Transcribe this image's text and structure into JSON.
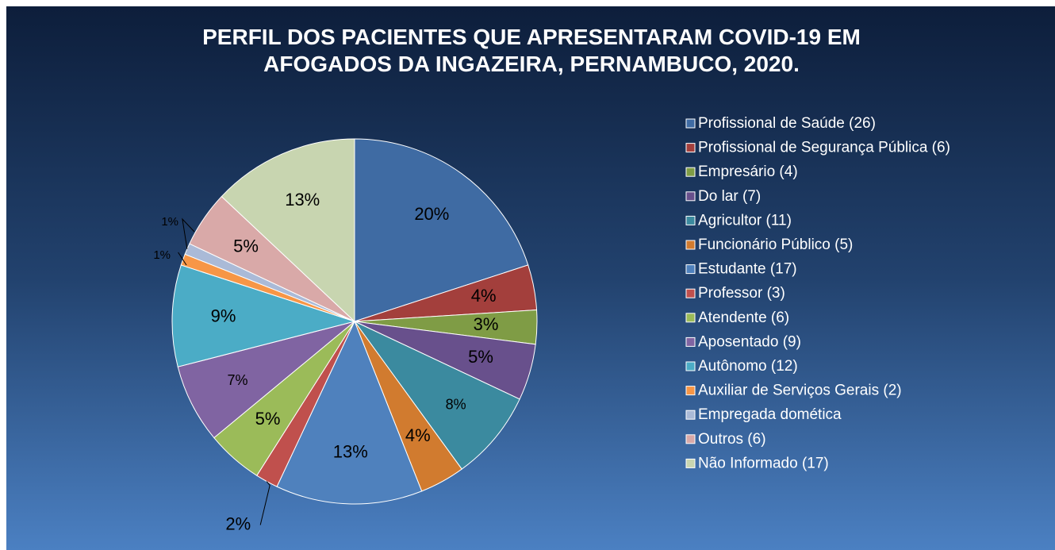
{
  "chart_data": {
    "type": "pie",
    "title": "PERFIL DOS PACIENTES QUE APRESENTARAM COVID-19 EM AFOGADOS DA INGAZEIRA, PERNAMBUCO, 2020.",
    "categories": [
      "Profissional de Saúde (26)",
      "Profissional de Segurança Pública (6)",
      "Empresário (4)",
      "Do lar (7)",
      "Agricultor (11)",
      "Funcionário Público (5)",
      "Estudante (17)",
      "Professor (3)",
      "Atendente (6)",
      "Aposentado (9)",
      "Autônomo (12)",
      "Auxiliar de Serviços Gerais (2)",
      "Empregada domética",
      "Outros (6)",
      "Não Informado (17)"
    ],
    "values": [
      20,
      4,
      3,
      5,
      8,
      4,
      13,
      2,
      5,
      7,
      9,
      1,
      1,
      5,
      13
    ],
    "value_labels": [
      "20%",
      "4%",
      "3%",
      "5%",
      "8%",
      "4%",
      "13%",
      "2%",
      "5%",
      "7%",
      "9%",
      "1%",
      "1%",
      "5%",
      "13%"
    ],
    "colors": [
      "#3f6ba3",
      "#a33f3c",
      "#7f9c45",
      "#68508c",
      "#3b8a9f",
      "#d17b2f",
      "#4f81bd",
      "#c0504d",
      "#9bbb59",
      "#8064a2",
      "#4bacc6",
      "#f79646",
      "#aabad7",
      "#d9a9a8",
      "#c8d5b0"
    ],
    "legend": "right"
  }
}
